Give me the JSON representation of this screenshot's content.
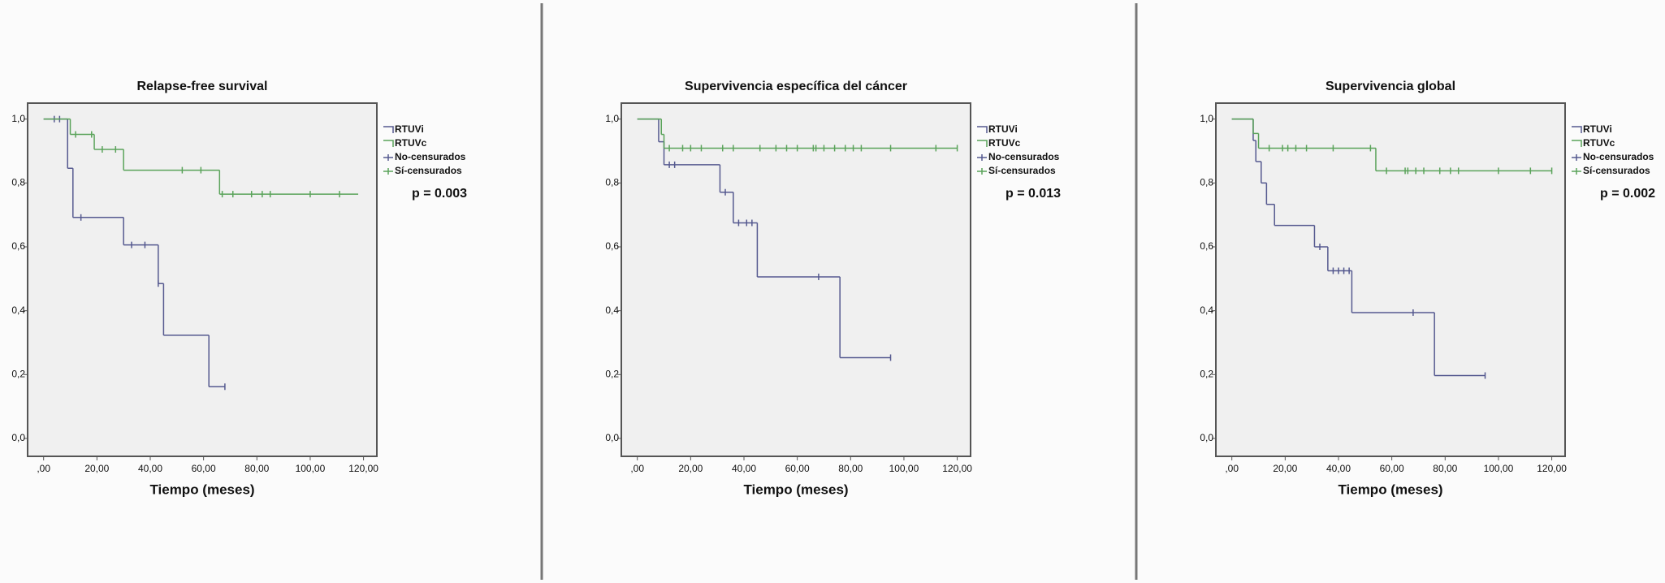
{
  "chart_data": [
    {
      "type": "kaplan-meier",
      "title": "Relapse-free survival",
      "x_label": "Tiempo (meses)",
      "annotation": "p = 0.003",
      "xlim": [
        -6,
        125
      ],
      "ylim": [
        -0.056,
        1.05
      ],
      "xticks": [
        {
          "value": 0,
          "label": ",00"
        },
        {
          "value": 20,
          "label": "20,00"
        },
        {
          "value": 40,
          "label": "40,00"
        },
        {
          "value": 60,
          "label": "60,00"
        },
        {
          "value": 80,
          "label": "80,00"
        },
        {
          "value": 100,
          "label": "100,00"
        },
        {
          "value": 120,
          "label": "120,00"
        }
      ],
      "yticks": [
        {
          "value": 0,
          "label": "0,0"
        },
        {
          "value": 0.2,
          "label": "0,2"
        },
        {
          "value": 0.4,
          "label": "0,4"
        },
        {
          "value": 0.6,
          "label": "0,6"
        },
        {
          "value": 0.8,
          "label": "0,8"
        },
        {
          "value": 1,
          "label": "1,0"
        }
      ],
      "censor_labels": [
        "No-censurados",
        "Sí-censurados"
      ],
      "series": [
        {
          "name": "RTUVi",
          "color": "#55598f",
          "x": [
            0,
            9,
            11,
            30,
            43,
            45,
            62,
            68
          ],
          "values": [
            1,
            0.846,
            0.692,
            0.606,
            0.485,
            0.323,
            0.162,
            0.162
          ],
          "censored_x": [
            4,
            6,
            14,
            33,
            38,
            43,
            68
          ],
          "censored_values": [
            1,
            1,
            0.692,
            0.606,
            0.606,
            0.485,
            0.162
          ]
        },
        {
          "name": "RTUVc",
          "color": "#5aa35a",
          "x": [
            0,
            10,
            19,
            30,
            66,
            118
          ],
          "values": [
            1,
            0.952,
            0.905,
            0.84,
            0.765,
            0.765
          ],
          "censored_x": [
            12,
            18,
            22,
            27,
            52,
            59,
            67,
            71,
            78,
            82,
            85,
            100,
            111
          ],
          "censored_values": [
            0.952,
            0.952,
            0.905,
            0.905,
            0.84,
            0.84,
            0.765,
            0.765,
            0.765,
            0.765,
            0.765,
            0.765,
            0.765
          ]
        }
      ]
    },
    {
      "type": "kaplan-meier",
      "title": "Supervivencia específica del cáncer",
      "x_label": "Tiempo (meses)",
      "annotation": "p = 0.013",
      "xlim": [
        -6,
        125
      ],
      "ylim": [
        -0.056,
        1.05
      ],
      "xticks": [
        {
          "value": 0,
          "label": ",00"
        },
        {
          "value": 20,
          "label": "20,00"
        },
        {
          "value": 40,
          "label": "40,00"
        },
        {
          "value": 60,
          "label": "60,00"
        },
        {
          "value": 80,
          "label": "80,00"
        },
        {
          "value": 100,
          "label": "100,00"
        },
        {
          "value": 120,
          "label": "120,00"
        }
      ],
      "yticks": [
        {
          "value": 0,
          "label": "0,0"
        },
        {
          "value": 0.2,
          "label": "0,2"
        },
        {
          "value": 0.4,
          "label": "0,4"
        },
        {
          "value": 0.6,
          "label": "0,6"
        },
        {
          "value": 0.8,
          "label": "0,8"
        },
        {
          "value": 1,
          "label": "1,0"
        }
      ],
      "censor_labels": [
        "No-censurados",
        "Sí-censurados"
      ],
      "series": [
        {
          "name": "RTUVi",
          "color": "#55598f",
          "x": [
            0,
            8,
            10,
            31,
            36,
            45,
            76,
            95
          ],
          "values": [
            1,
            0.929,
            0.857,
            0.771,
            0.675,
            0.506,
            0.253,
            0.253
          ],
          "censored_x": [
            12,
            14,
            33,
            38,
            41,
            43,
            68,
            95
          ],
          "censored_values": [
            0.857,
            0.857,
            0.771,
            0.675,
            0.675,
            0.675,
            0.506,
            0.253
          ]
        },
        {
          "name": "RTUVc",
          "color": "#5aa35a",
          "x": [
            0,
            9,
            10,
            120
          ],
          "values": [
            1,
            0.952,
            0.909,
            0.909
          ],
          "censored_x": [
            12,
            17,
            20,
            24,
            32,
            36,
            46,
            52,
            56,
            60,
            66,
            67,
            70,
            74,
            78,
            81,
            84,
            95,
            112,
            120
          ],
          "censored_values": [
            0.909,
            0.909,
            0.909,
            0.909,
            0.909,
            0.909,
            0.909,
            0.909,
            0.909,
            0.909,
            0.909,
            0.909,
            0.909,
            0.909,
            0.909,
            0.909,
            0.909,
            0.909,
            0.909,
            0.909
          ]
        }
      ]
    },
    {
      "type": "kaplan-meier",
      "title": "Supervivencia global",
      "x_label": "Tiempo (meses)",
      "annotation": "p = 0.002",
      "xlim": [
        -6,
        125
      ],
      "ylim": [
        -0.056,
        1.05
      ],
      "xticks": [
        {
          "value": 0,
          "label": ",00"
        },
        {
          "value": 20,
          "label": "20,00"
        },
        {
          "value": 40,
          "label": "40,00"
        },
        {
          "value": 60,
          "label": "60,00"
        },
        {
          "value": 80,
          "label": "80,00"
        },
        {
          "value": 100,
          "label": "100,00"
        },
        {
          "value": 120,
          "label": "120,00"
        }
      ],
      "yticks": [
        {
          "value": 0,
          "label": "0,0"
        },
        {
          "value": 0.2,
          "label": "0,2"
        },
        {
          "value": 0.4,
          "label": "0,4"
        },
        {
          "value": 0.6,
          "label": "0,6"
        },
        {
          "value": 0.8,
          "label": "0,8"
        },
        {
          "value": 1,
          "label": "1,0"
        }
      ],
      "censor_labels": [
        "No-censurados",
        "Sí-censurados"
      ],
      "series": [
        {
          "name": "RTUVi",
          "color": "#55598f",
          "x": [
            0,
            8,
            9,
            11,
            13,
            16,
            31,
            36,
            45,
            76,
            95
          ],
          "values": [
            1,
            0.933,
            0.867,
            0.8,
            0.733,
            0.667,
            0.6,
            0.525,
            0.394,
            0.197,
            0.197
          ],
          "censored_x": [
            33,
            38,
            40,
            42,
            44,
            68,
            95
          ],
          "censored_values": [
            0.6,
            0.525,
            0.525,
            0.525,
            0.525,
            0.394,
            0.197
          ]
        },
        {
          "name": "RTUVc",
          "color": "#5aa35a",
          "x": [
            0,
            8,
            10,
            54,
            120
          ],
          "values": [
            1,
            0.955,
            0.909,
            0.838,
            0.838
          ],
          "censored_x": [
            14,
            19,
            21,
            24,
            28,
            38,
            52,
            58,
            65,
            66,
            69,
            72,
            78,
            82,
            85,
            100,
            112,
            120
          ],
          "censored_values": [
            0.909,
            0.909,
            0.909,
            0.909,
            0.909,
            0.909,
            0.909,
            0.838,
            0.838,
            0.838,
            0.838,
            0.838,
            0.838,
            0.838,
            0.838,
            0.838,
            0.838,
            0.838
          ]
        }
      ]
    }
  ]
}
